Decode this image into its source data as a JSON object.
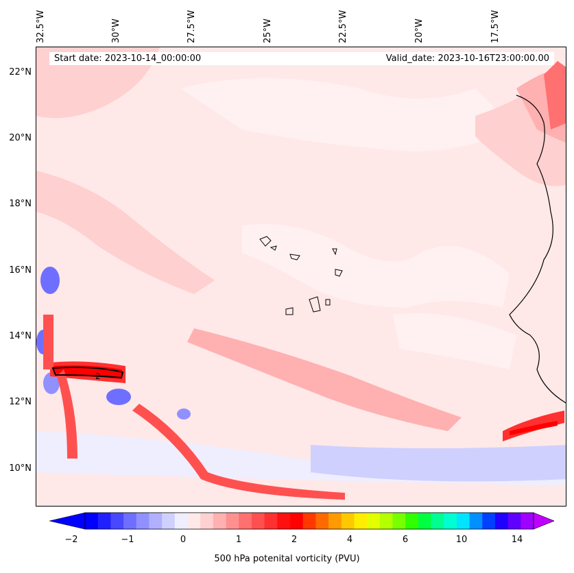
{
  "map": {
    "start_date": "Start date: 2023-10-14_00:00:00",
    "valid_date": "Valid_date: 2023-10-16T23:00:00.00",
    "lon_labels": [
      "32.5°W",
      "30°W",
      "27.5°W",
      "25°W",
      "22.5°W",
      "20°W",
      "17.5°W"
    ],
    "lat_labels": [
      "22°N",
      "20°N",
      "18°N",
      "16°N",
      "14°N",
      "12°N",
      "10°N"
    ],
    "contour_label": "2"
  },
  "colorbar": {
    "label": "500 hPa potenital vorticity (PVU)",
    "ticks": [
      "−2",
      "−1",
      "0",
      "1",
      "2",
      "4",
      "6",
      "10",
      "14"
    ],
    "colors": [
      "#0000ff",
      "#2020ff",
      "#4848ff",
      "#6f6fff",
      "#9090ff",
      "#b0b0ff",
      "#d0d0ff",
      "#eeeeff",
      "#ffe8e8",
      "#ffd0d0",
      "#ffb0b0",
      "#ff9090",
      "#ff7070",
      "#ff5050",
      "#ff3030",
      "#ff1010",
      "#ff0000",
      "#ff3800",
      "#ff6a00",
      "#ff9a00",
      "#ffc800",
      "#ffee00",
      "#e4ff00",
      "#b4ff00",
      "#78ff00",
      "#30ff00",
      "#00ff40",
      "#00ff90",
      "#00ffd0",
      "#00e4ff",
      "#0090ff",
      "#0040ff",
      "#2000ff",
      "#6000ff",
      "#a000ff"
    ],
    "under_color": "#0000ff",
    "over_color": "#c000ff"
  }
}
